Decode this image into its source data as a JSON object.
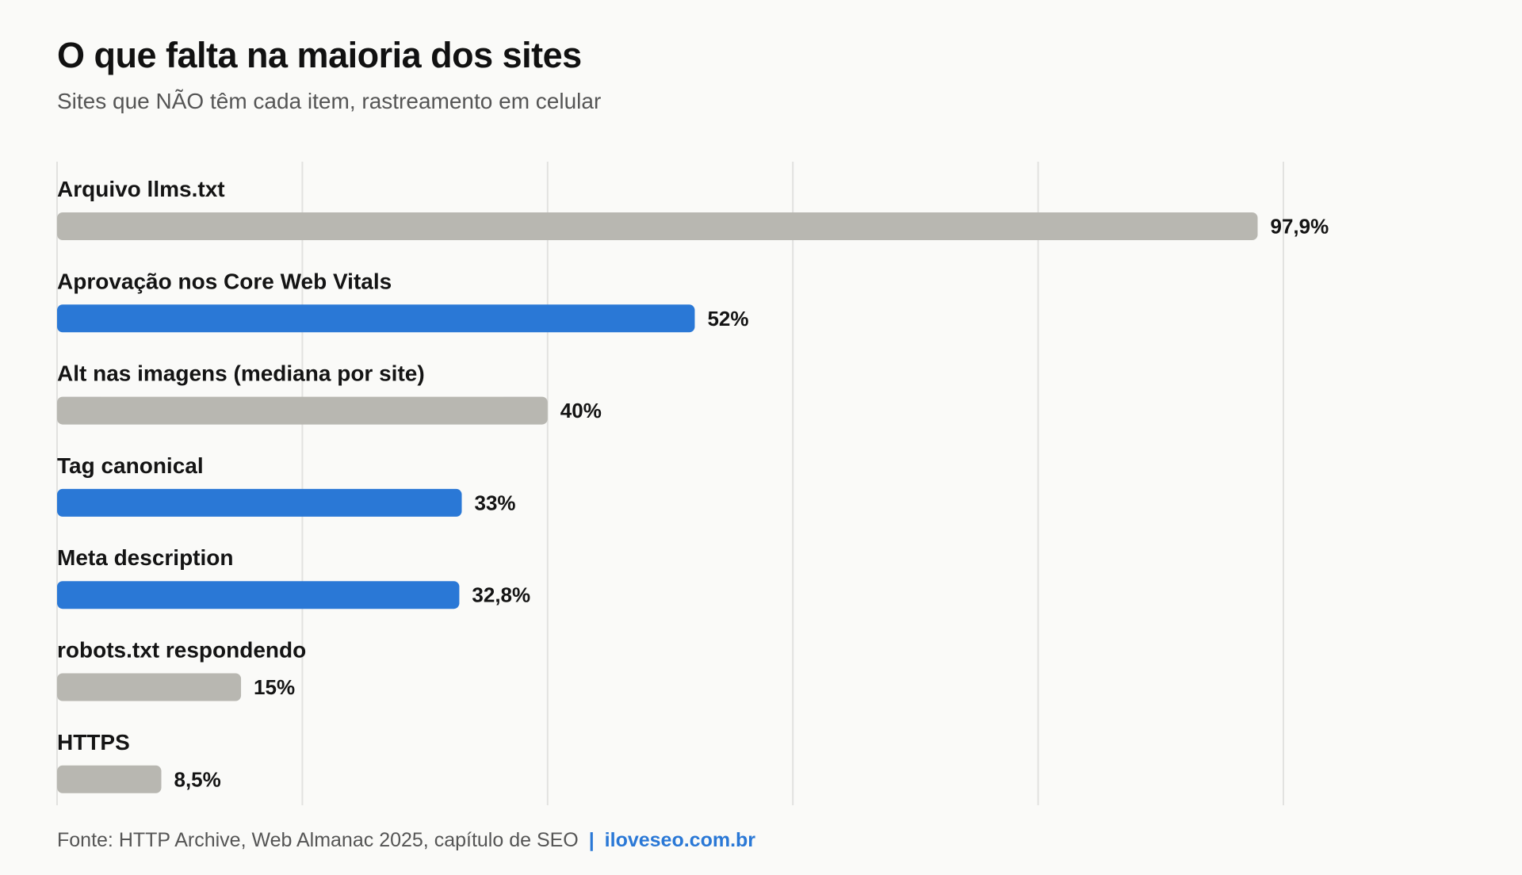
{
  "title": "O que falta na maioria dos sites",
  "subtitle": "Sites que NÃO têm cada item, rastreamento em celular",
  "footer": {
    "source": "Fonte: HTTP Archive, Web Almanac 2025, capítulo de SEO",
    "separator": "|",
    "brand": "iloveseo.com.br"
  },
  "colors": {
    "highlight": "#2a78d6",
    "muted": "#b8b7b1",
    "grid": "#e2e2e0"
  },
  "chart_data": {
    "type": "bar",
    "orientation": "horizontal",
    "categories": [
      "Arquivo llms.txt",
      "Aprovação nos Core Web Vitals",
      "Alt nas imagens (mediana por site)",
      "Tag canonical",
      "Meta description",
      "robots.txt respondendo",
      "HTTPS"
    ],
    "values": [
      97.9,
      52,
      40,
      33,
      32.8,
      15,
      8.5
    ],
    "value_labels": [
      "97,9%",
      "52%",
      "40%",
      "33%",
      "32,8%",
      "15%",
      "8,5%"
    ],
    "highlighted": [
      false,
      true,
      false,
      true,
      true,
      false,
      false
    ],
    "xlim": [
      0,
      100
    ],
    "grid": true,
    "gridline_values": [
      0,
      20,
      40,
      60,
      80,
      100
    ]
  }
}
